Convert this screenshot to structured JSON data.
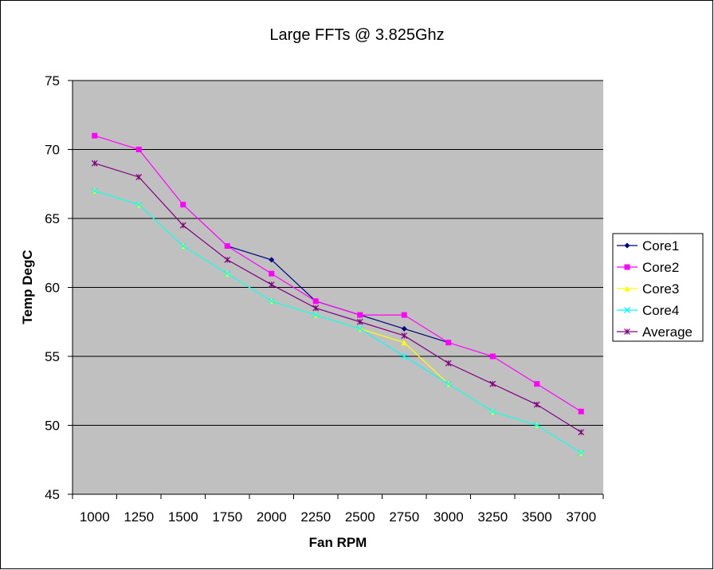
{
  "chart_data": {
    "type": "line",
    "title": "Large FFTs @ 3.825Ghz",
    "xlabel": "Fan RPM",
    "ylabel": "Temp DegC",
    "categories": [
      "1000",
      "1250",
      "1500",
      "1750",
      "2000",
      "2250",
      "2500",
      "2750",
      "3000",
      "3250",
      "3500",
      "3700"
    ],
    "ylim": [
      45,
      75
    ],
    "yticks": [
      45,
      50,
      55,
      60,
      65,
      70,
      75
    ],
    "grid": true,
    "legend_position": "right",
    "plot_background": "#c0c0c0",
    "series": [
      {
        "name": "Core1",
        "color": "#000080",
        "marker": "diamond",
        "values": [
          null,
          null,
          null,
          63,
          62,
          59,
          58,
          57,
          56,
          null,
          null,
          null
        ]
      },
      {
        "name": "Core2",
        "color": "#ff00ff",
        "marker": "square",
        "values": [
          71,
          70,
          66,
          63,
          61,
          59,
          58,
          58,
          56,
          55,
          53,
          51
        ]
      },
      {
        "name": "Core3",
        "color": "#ffff00",
        "marker": "triangle",
        "values": [
          67,
          66,
          63,
          61,
          59,
          58,
          57,
          56,
          53,
          51,
          50,
          48
        ]
      },
      {
        "name": "Core4",
        "color": "#00ffff",
        "marker": "x",
        "values": [
          67,
          66,
          63,
          61,
          59,
          58,
          57,
          55,
          53,
          51,
          50,
          48
        ]
      },
      {
        "name": "Average",
        "color": "#800080",
        "marker": "star",
        "values": [
          69,
          68,
          64.5,
          62,
          60.2,
          58.5,
          57.5,
          56.5,
          54.5,
          53,
          51.5,
          49.5
        ]
      }
    ]
  }
}
